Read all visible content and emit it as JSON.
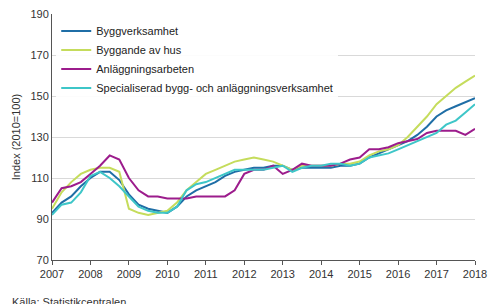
{
  "chart_data": {
    "type": "line",
    "y_label": "Index (2010=100)",
    "caption": "Källa: Statistikcentralen",
    "x": [
      2007,
      2007.25,
      2007.5,
      2007.75,
      2008,
      2008.25,
      2008.5,
      2008.75,
      2009,
      2009.25,
      2009.5,
      2009.75,
      2010,
      2010.25,
      2010.5,
      2010.75,
      2011,
      2011.25,
      2011.5,
      2011.75,
      2012,
      2012.25,
      2012.5,
      2012.75,
      2013,
      2013.25,
      2013.5,
      2013.75,
      2014,
      2014.25,
      2014.5,
      2014.75,
      2015,
      2015.25,
      2015.5,
      2015.75,
      2016,
      2016.25,
      2016.5,
      2016.75,
      2017,
      2017.25,
      2017.5,
      2017.75,
      2018
    ],
    "series": [
      {
        "name": "Byggverksamhet",
        "color": "#1f6ea6",
        "values": [
          93,
          98,
          101,
          106,
          110,
          113,
          113,
          109,
          102,
          97,
          95,
          94,
          93,
          96,
          101,
          104,
          106,
          108,
          111,
          113,
          114,
          115,
          115,
          116,
          116,
          114,
          115,
          115,
          115,
          115,
          116,
          116,
          117,
          120,
          122,
          124,
          126,
          128,
          131,
          135,
          140,
          143,
          145,
          147,
          149
        ]
      },
      {
        "name": "Byggande av hus",
        "color": "#c5dc5c",
        "values": [
          95,
          103,
          108,
          112,
          114,
          115,
          115,
          113,
          95,
          93,
          92,
          93,
          94,
          98,
          104,
          108,
          112,
          114,
          116,
          118,
          119,
          120,
          119,
          118,
          116,
          114,
          116,
          116,
          116,
          116,
          117,
          117,
          118,
          121,
          123,
          124,
          126,
          130,
          135,
          140,
          146,
          150,
          154,
          157,
          160
        ]
      },
      {
        "name": "Anläggningsarbeten",
        "color": "#9c1c8c",
        "values": [
          98,
          105,
          106,
          108,
          112,
          116,
          121,
          119,
          110,
          104,
          101,
          101,
          100,
          100,
          100,
          101,
          101,
          101,
          101,
          104,
          112,
          114,
          114,
          116,
          112,
          114,
          117,
          116,
          116,
          116,
          117,
          119,
          120,
          124,
          124,
          125,
          127,
          128,
          129,
          132,
          133,
          133,
          133,
          131,
          134
        ]
      },
      {
        "name": "Specialiserad bygg- och anläggningsverksamhet",
        "color": "#3ec6c8",
        "values": [
          92,
          97,
          98,
          103,
          111,
          113,
          110,
          106,
          101,
          96,
          94,
          93,
          93,
          96,
          104,
          107,
          108,
          110,
          112,
          114,
          114,
          114,
          114,
          115,
          116,
          113,
          115,
          116,
          116,
          117,
          117,
          116,
          117,
          120,
          121,
          122,
          124,
          126,
          128,
          130,
          132,
          136,
          138,
          142,
          146
        ]
      }
    ],
    "xlim": [
      2007,
      2018
    ],
    "xticks": [
      2007,
      2008,
      2009,
      2010,
      2011,
      2012,
      2013,
      2014,
      2015,
      2016,
      2017,
      2018
    ],
    "ylim": [
      70,
      190
    ],
    "yticks": [
      70,
      90,
      110,
      130,
      150,
      170,
      190
    ],
    "grid": true,
    "legend": "top-left"
  }
}
